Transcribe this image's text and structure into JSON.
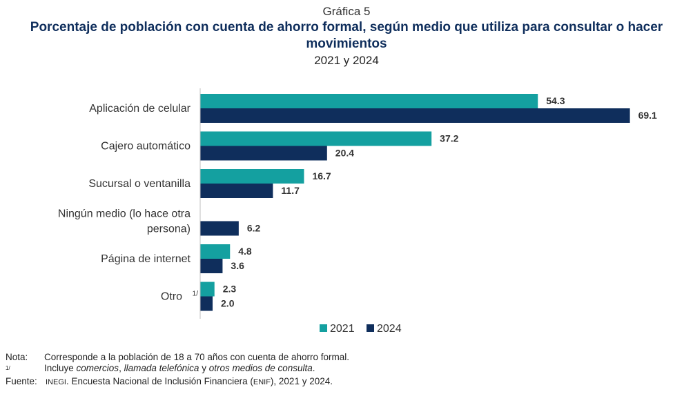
{
  "header": {
    "chart_number": "Gráfica 5",
    "title": "Porcentaje de población con cuenta de ahorro formal, según medio que utiliza para consultar o hacer movimientos",
    "subtitle": "2021 y 2024"
  },
  "chart_data": {
    "type": "bar",
    "orientation": "horizontal",
    "categories": [
      "Aplicación de celular",
      "Cajero automático",
      "Sucursal o ventanilla",
      "Ningún medio (lo hace otra persona)",
      "Página de internet",
      "Otro"
    ],
    "category_superscripts": [
      "",
      "",
      "",
      "",
      "",
      "1/"
    ],
    "series": [
      {
        "name": "2021",
        "color": "#14a0a0",
        "values": [
          54.3,
          37.2,
          16.7,
          null,
          4.8,
          2.3
        ]
      },
      {
        "name": "2024",
        "color": "#0f2e5c",
        "values": [
          69.1,
          20.4,
          11.7,
          6.2,
          3.6,
          2.0
        ]
      }
    ],
    "xlim": [
      0,
      75
    ],
    "data_labels": true,
    "grid": false,
    "legend_position": "bottom"
  },
  "notes": {
    "nota_label": "Nota:",
    "nota_text": "Corresponde a la población de 18 a 70 años con cuenta de ahorro formal.",
    "footnote_marker": "1/",
    "footnote_prefix": "Incluye",
    "footnote_item1": "comercios",
    "footnote_sep1": ",",
    "footnote_item2": "llamada telefónica",
    "footnote_sep2": "y",
    "footnote_item3": "otros medios de consulta",
    "footnote_end": ".",
    "fuente_label": "Fuente:",
    "fuente_org": "INEGI",
    "fuente_text1": ". Encuesta Nacional de Inclusión Financiera (",
    "fuente_acronym": "ENIF",
    "fuente_text2": "), 2021 y 2024."
  }
}
